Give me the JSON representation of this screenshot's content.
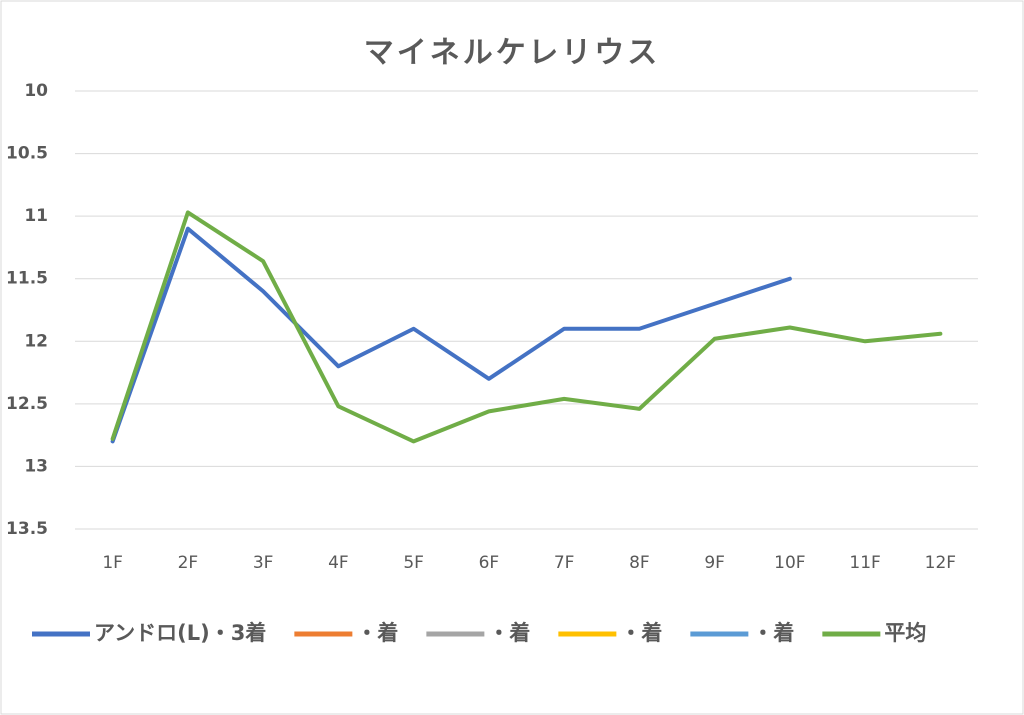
{
  "chart_data": {
    "type": "line",
    "title": "マイネルケレリウス",
    "categories": [
      "1F",
      "2F",
      "3F",
      "4F",
      "5F",
      "6F",
      "7F",
      "8F",
      "9F",
      "10F",
      "11F",
      "12F"
    ],
    "series": [
      {
        "name": "アンドロ(L)・3着",
        "color": "#4472c4",
        "values": [
          12.8,
          11.1,
          11.6,
          12.2,
          11.9,
          12.3,
          11.9,
          11.9,
          11.7,
          11.5,
          null,
          null
        ]
      },
      {
        "name": "・着",
        "color": "#ed7d31",
        "values": [
          null,
          null,
          null,
          null,
          null,
          null,
          null,
          null,
          null,
          null,
          null,
          null
        ]
      },
      {
        "name": "・着",
        "color": "#a5a5a5",
        "values": [
          null,
          null,
          null,
          null,
          null,
          null,
          null,
          null,
          null,
          null,
          null,
          null
        ]
      },
      {
        "name": "・着",
        "color": "#ffc000",
        "values": [
          null,
          null,
          null,
          null,
          null,
          null,
          null,
          null,
          null,
          null,
          null,
          null
        ]
      },
      {
        "name": "・着",
        "color": "#5b9bd5",
        "values": [
          null,
          null,
          null,
          null,
          null,
          null,
          null,
          null,
          null,
          null,
          null,
          null
        ]
      },
      {
        "name": "平均",
        "color": "#70ad47",
        "values": [
          12.78,
          10.97,
          11.36,
          12.52,
          12.8,
          12.56,
          12.46,
          12.54,
          11.98,
          11.89,
          12.0,
          11.94
        ]
      }
    ],
    "ylim": [
      10,
      13.5
    ],
    "y_reversed": true,
    "yticks": [
      10,
      10.5,
      11,
      11.5,
      12,
      12.5,
      13,
      13.5
    ],
    "grid": true,
    "legend": "bottom"
  }
}
